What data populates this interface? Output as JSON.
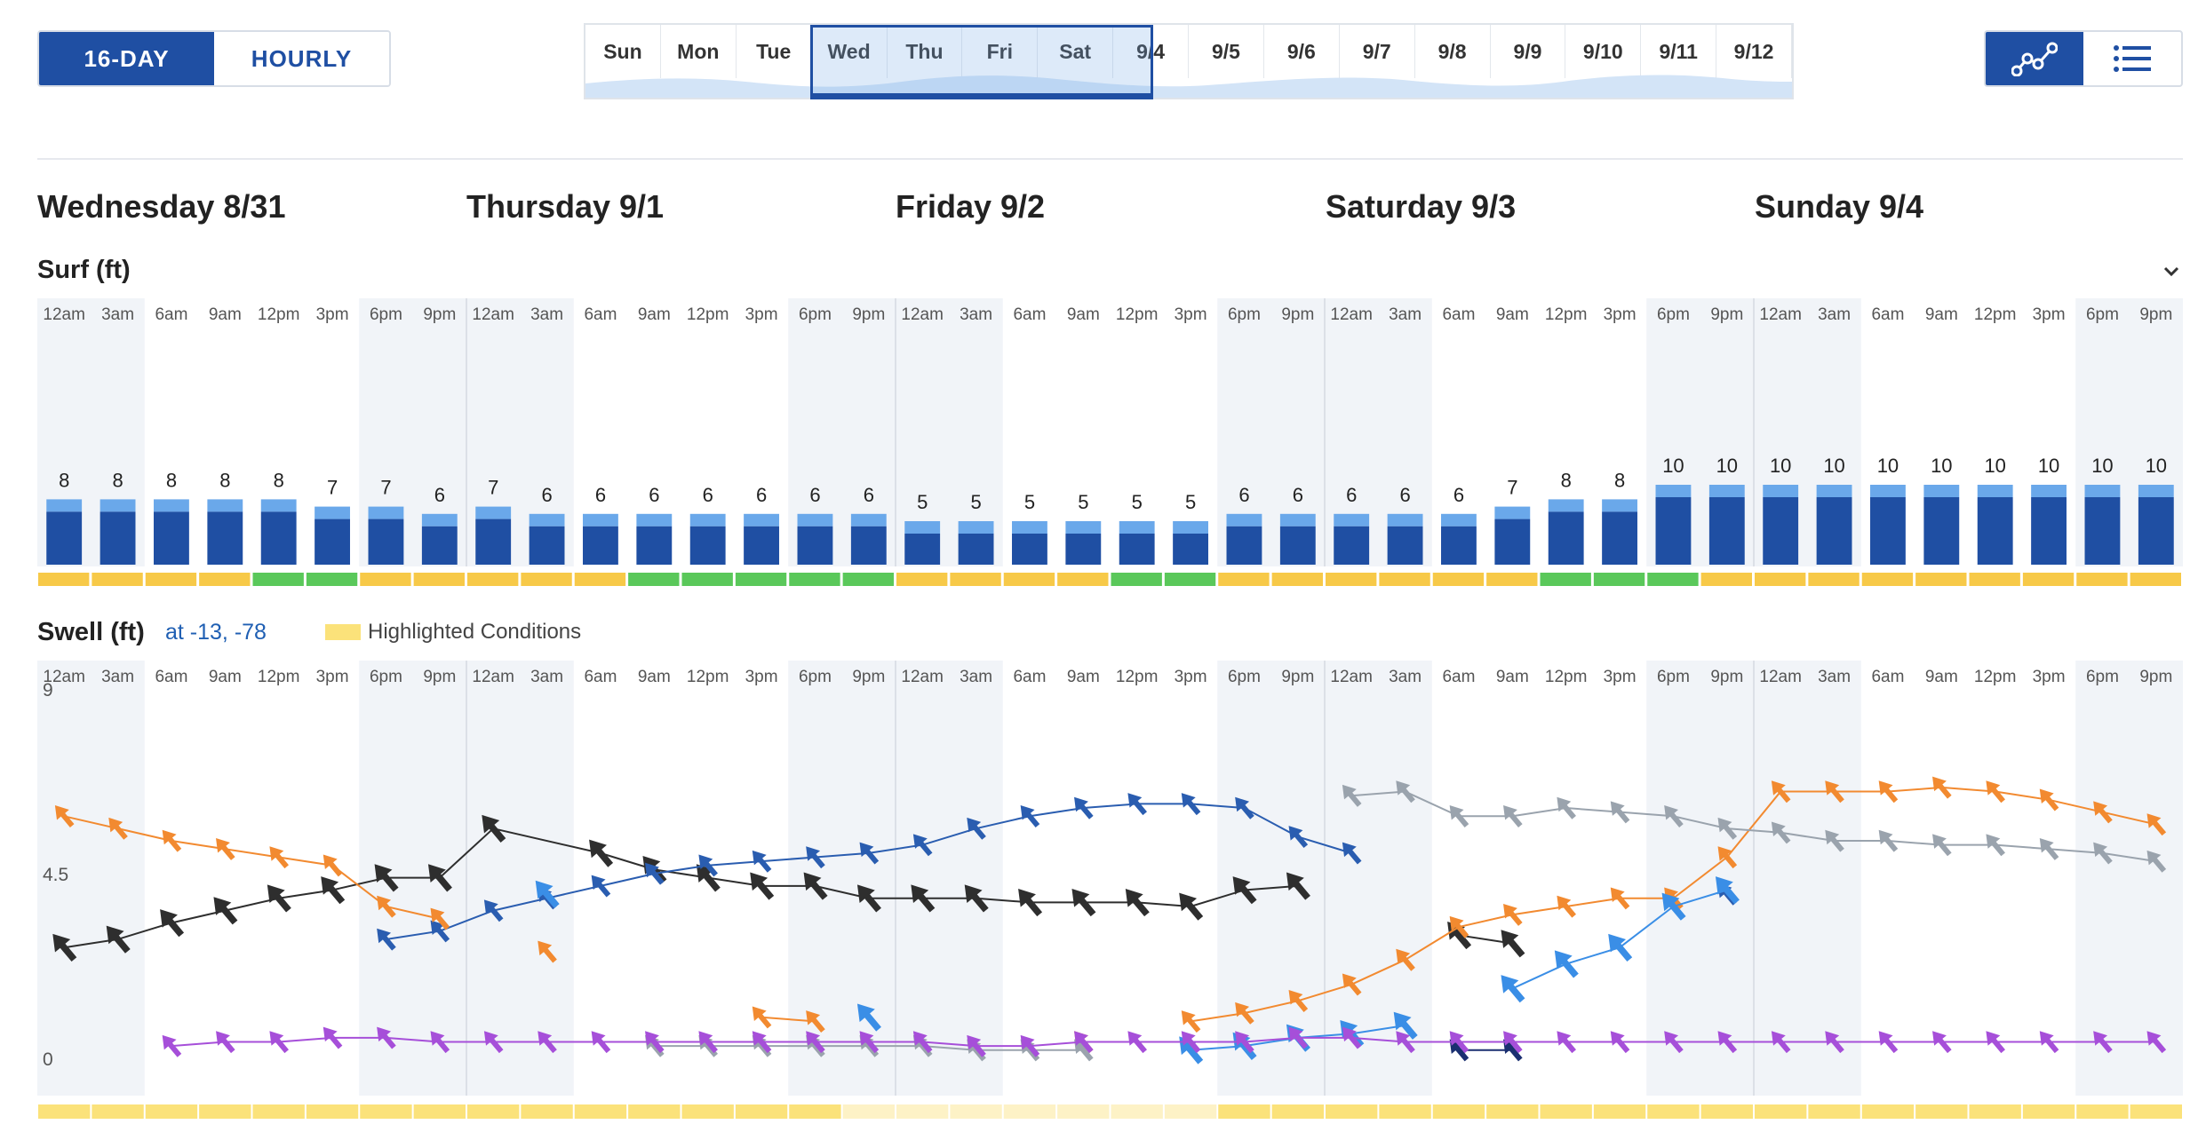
{
  "toolbar": {
    "mode_tabs": [
      {
        "label": "16-DAY",
        "active": true
      },
      {
        "label": "HOURLY",
        "active": false
      }
    ],
    "view_icons": [
      {
        "icon": "chart-graph-icon",
        "active": true
      },
      {
        "icon": "list-view-icon",
        "active": false
      }
    ]
  },
  "day_selector": {
    "days": [
      "Sun",
      "Mon",
      "Tue",
      "Wed",
      "Thu",
      "Fri",
      "Sat",
      "9/4",
      "9/5",
      "9/6",
      "9/7",
      "9/8",
      "9/9",
      "9/10",
      "9/11",
      "9/12"
    ],
    "selected_range": [
      "Wed",
      "9/4"
    ]
  },
  "day_headings": [
    "Wednesday 8/31",
    "Thursday 9/1",
    "Friday 9/2",
    "Saturday 9/3",
    "Sunday 9/4"
  ],
  "surf_section": {
    "title": "Surf (ft)"
  },
  "swell_section": {
    "title": "Swell (ft)",
    "location": "at -13, -78",
    "legend_label": "Highlighted Conditions"
  },
  "colors": {
    "brand": "#1f4fa3",
    "bar_dark": "#1f4fa3",
    "bar_light": "#6aa8ea",
    "fair": "#f7c948",
    "good": "#5ac85a",
    "highlight": "#fbe27a"
  },
  "chart_data": [
    {
      "type": "bar",
      "name": "surf",
      "time_ticks": [
        "12am",
        "3am",
        "6am",
        "9am",
        "12pm",
        "3pm",
        "6pm",
        "9pm"
      ],
      "values": [
        8,
        8,
        8,
        8,
        8,
        7,
        7,
        6,
        7,
        6,
        6,
        6,
        6,
        6,
        6,
        6,
        5,
        5,
        5,
        5,
        5,
        5,
        6,
        6,
        6,
        6,
        6,
        7,
        8,
        8,
        10,
        10,
        10,
        10,
        10,
        10,
        10,
        10,
        10,
        10
      ],
      "conditions": [
        "fair",
        "fair",
        "fair",
        "fair",
        "good",
        "good",
        "fair",
        "fair",
        "fair",
        "fair",
        "fair",
        "good",
        "good",
        "good",
        "good",
        "good",
        "fair",
        "fair",
        "fair",
        "fair",
        "good",
        "good",
        "fair",
        "fair",
        "fair",
        "fair",
        "fair",
        "fair",
        "good",
        "good",
        "good",
        "fair",
        "fair",
        "fair",
        "fair",
        "fair",
        "fair",
        "fair",
        "fair",
        "fair"
      ]
    },
    {
      "type": "line",
      "name": "swell",
      "time_ticks": [
        "12am",
        "3am",
        "6am",
        "9am",
        "12pm",
        "3pm",
        "6pm",
        "9pm"
      ],
      "y_ticks": [
        "9",
        "4.5",
        "0"
      ],
      "ylim": [
        0,
        9
      ],
      "series": [
        {
          "color": "#2e2e2e",
          "points": [
            [
              0,
              2.7
            ],
            [
              1,
              2.9
            ],
            [
              2,
              3.3
            ],
            [
              3,
              3.6
            ],
            [
              4,
              3.9
            ],
            [
              5,
              4.1
            ],
            [
              6,
              4.4
            ],
            [
              7,
              4.4
            ],
            [
              8,
              5.6
            ],
            null,
            [
              10,
              5.0
            ],
            [
              11,
              4.6
            ],
            [
              12,
              4.4
            ],
            [
              13,
              4.2
            ],
            [
              14,
              4.2
            ],
            [
              15,
              3.9
            ],
            [
              16,
              3.9
            ],
            [
              17,
              3.9
            ],
            [
              18,
              3.8
            ],
            [
              19,
              3.8
            ],
            [
              20,
              3.8
            ],
            [
              21,
              3.7
            ],
            [
              22,
              4.1
            ],
            [
              23,
              4.2
            ]
          ]
        },
        {
          "color": "#2e2e2e",
          "points": [
            [
              26,
              3.0
            ],
            [
              27,
              2.8
            ]
          ]
        },
        {
          "color": "#2a5db0",
          "points": [
            [
              6,
              2.9
            ],
            [
              7,
              3.1
            ],
            [
              8,
              3.6
            ],
            [
              9,
              3.9
            ],
            [
              10,
              4.2
            ],
            [
              11,
              4.5
            ],
            [
              12,
              4.7
            ],
            [
              13,
              4.8
            ],
            [
              14,
              4.9
            ],
            [
              15,
              5.0
            ],
            [
              16,
              5.2
            ],
            [
              17,
              5.6
            ],
            [
              18,
              5.9
            ],
            [
              19,
              6.1
            ],
            [
              20,
              6.2
            ],
            [
              21,
              6.2
            ],
            [
              22,
              6.1
            ],
            [
              23,
              5.4
            ],
            [
              24,
              5.0
            ]
          ]
        },
        {
          "color": "#2a5db0",
          "points": [
            [
              31,
              4.0
            ]
          ]
        },
        {
          "color": "#f28a30",
          "points": [
            [
              0,
              5.9
            ],
            [
              1,
              5.6
            ],
            [
              2,
              5.3
            ],
            [
              3,
              5.1
            ],
            [
              4,
              4.9
            ],
            [
              5,
              4.7
            ],
            [
              6,
              3.7
            ],
            [
              7,
              3.4
            ]
          ]
        },
        {
          "color": "#f28a30",
          "points": [
            [
              9,
              2.6
            ]
          ]
        },
        {
          "color": "#f28a30",
          "points": [
            [
              13,
              1.0
            ],
            [
              14,
              0.9
            ]
          ]
        },
        {
          "color": "#f28a30",
          "points": [
            [
              19,
              0.4
            ]
          ]
        },
        {
          "color": "#f28a30",
          "points": [
            [
              21,
              0.9
            ],
            [
              22,
              1.1
            ],
            [
              23,
              1.4
            ],
            [
              24,
              1.8
            ],
            [
              25,
              2.4
            ],
            [
              26,
              3.2
            ],
            [
              27,
              3.5
            ],
            [
              28,
              3.7
            ],
            [
              29,
              3.9
            ],
            [
              30,
              3.9
            ],
            [
              31,
              4.9
            ],
            [
              32,
              6.5
            ],
            [
              33,
              6.5
            ],
            [
              34,
              6.5
            ],
            [
              35,
              6.6
            ],
            [
              36,
              6.5
            ],
            [
              37,
              6.3
            ],
            [
              38,
              6.0
            ],
            [
              39,
              5.7
            ]
          ]
        },
        {
          "color": "#3a8ee6",
          "points": [
            [
              9,
              4.0
            ]
          ]
        },
        {
          "color": "#3a8ee6",
          "points": [
            [
              15,
              1.0
            ]
          ]
        },
        {
          "color": "#3a8ee6",
          "points": [
            [
              21,
              0.2
            ],
            [
              22,
              0.3
            ],
            [
              23,
              0.5
            ],
            [
              24,
              0.6
            ],
            [
              25,
              0.8
            ]
          ]
        },
        {
          "color": "#3a8ee6",
          "points": [
            [
              27,
              1.7
            ],
            [
              28,
              2.3
            ],
            [
              29,
              2.7
            ],
            [
              30,
              3.7
            ],
            [
              31,
              4.1
            ]
          ]
        },
        {
          "color": "#9aa3ad",
          "points": [
            [
              24,
              6.4
            ],
            [
              25,
              6.5
            ],
            [
              26,
              5.9
            ],
            [
              27,
              5.9
            ],
            [
              28,
              6.1
            ],
            [
              29,
              6.0
            ],
            [
              30,
              5.9
            ],
            [
              31,
              5.6
            ],
            [
              32,
              5.5
            ],
            [
              33,
              5.3
            ],
            [
              34,
              5.3
            ],
            [
              35,
              5.2
            ],
            [
              36,
              5.2
            ],
            [
              37,
              5.1
            ],
            [
              38,
              5.0
            ],
            [
              39,
              4.8
            ]
          ]
        },
        {
          "color": "#9aa3ad",
          "points": [
            [
              11,
              0.3
            ],
            [
              12,
              0.3
            ],
            [
              13,
              0.3
            ],
            [
              14,
              0.3
            ],
            [
              15,
              0.3
            ],
            [
              16,
              0.3
            ],
            [
              17,
              0.2
            ],
            [
              18,
              0.2
            ],
            [
              19,
              0.2
            ]
          ]
        },
        {
          "color": "#1a2f70",
          "points": [
            [
              26,
              0.2
            ],
            [
              27,
              0.2
            ]
          ]
        },
        {
          "color": "#a64fd9",
          "points": [
            [
              2,
              0.3
            ],
            [
              3,
              0.4
            ],
            [
              4,
              0.4
            ],
            [
              5,
              0.5
            ],
            [
              6,
              0.5
            ],
            [
              7,
              0.4
            ],
            [
              8,
              0.4
            ],
            [
              9,
              0.4
            ],
            [
              10,
              0.4
            ],
            [
              11,
              0.4
            ],
            [
              12,
              0.4
            ],
            [
              13,
              0.4
            ],
            [
              14,
              0.4
            ],
            [
              15,
              0.4
            ],
            [
              16,
              0.4
            ],
            [
              17,
              0.3
            ],
            [
              18,
              0.3
            ],
            [
              19,
              0.4
            ],
            [
              20,
              0.4
            ],
            [
              21,
              0.4
            ],
            [
              22,
              0.4
            ],
            [
              23,
              0.5
            ],
            [
              24,
              0.5
            ],
            [
              25,
              0.4
            ],
            [
              26,
              0.4
            ],
            [
              27,
              0.4
            ],
            [
              28,
              0.4
            ],
            [
              29,
              0.4
            ],
            [
              30,
              0.4
            ],
            [
              31,
              0.4
            ],
            [
              32,
              0.4
            ],
            [
              33,
              0.4
            ],
            [
              34,
              0.4
            ],
            [
              35,
              0.4
            ],
            [
              36,
              0.4
            ],
            [
              37,
              0.4
            ],
            [
              38,
              0.4
            ],
            [
              39,
              0.4
            ]
          ]
        }
      ],
      "highlight": [
        1,
        1,
        1,
        1,
        1,
        1,
        1,
        1,
        1,
        1,
        1,
        1,
        1,
        1,
        1,
        0,
        0,
        0,
        0,
        0,
        0,
        0,
        1,
        1,
        1,
        1,
        1,
        1,
        1,
        1,
        1,
        1,
        1,
        1,
        1,
        1,
        1,
        1,
        1,
        1
      ]
    }
  ]
}
